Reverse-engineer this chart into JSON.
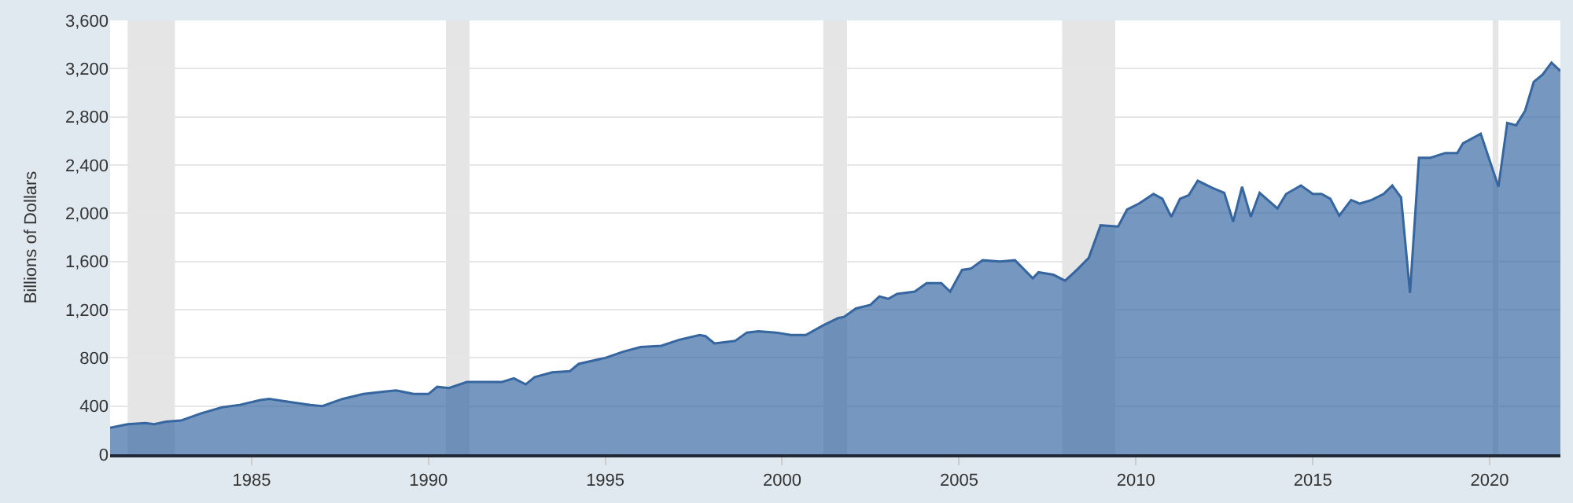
{
  "chart_data": {
    "type": "area",
    "ylabel": "Billions of Dollars",
    "x": [
      "1981-01",
      "1981-07",
      "1982-01",
      "1982-04",
      "1982-08",
      "1983-01",
      "1983-08",
      "1984-03",
      "1984-09",
      "1985-04",
      "1985-07",
      "1986-03",
      "1986-09",
      "1987-01",
      "1987-08",
      "1988-03",
      "1988-10",
      "1989-02",
      "1989-08",
      "1990-01",
      "1990-04",
      "1990-08",
      "1991-02",
      "1991-07",
      "1992-02",
      "1992-06",
      "1992-10",
      "1993-01",
      "1993-07",
      "1994-01",
      "1994-04",
      "1995-01",
      "1995-07",
      "1996-01",
      "1996-08",
      "1997-02",
      "1997-09",
      "1997-11",
      "1998-02",
      "1998-09",
      "1999-01",
      "1999-05",
      "1999-11",
      "2000-04",
      "2000-09",
      "2001-03",
      "2001-08",
      "2001-10",
      "2002-02",
      "2002-07",
      "2002-10",
      "2003-01",
      "2003-04",
      "2003-10",
      "2004-02",
      "2004-07",
      "2004-10",
      "2005-02",
      "2005-05",
      "2005-09",
      "2006-03",
      "2006-08",
      "2007-02",
      "2007-04",
      "2007-09",
      "2008-01",
      "2008-05",
      "2008-09",
      "2009-01",
      "2009-07",
      "2009-10",
      "2010-02",
      "2010-07",
      "2010-10",
      "2011-01",
      "2011-04",
      "2011-07",
      "2011-10",
      "2012-03",
      "2012-07",
      "2012-10",
      "2013-01",
      "2013-04",
      "2013-07",
      "2014-01",
      "2014-04",
      "2014-09",
      "2015-01",
      "2015-04",
      "2015-07",
      "2015-10",
      "2016-02",
      "2016-05",
      "2016-09",
      "2017-01",
      "2017-04",
      "2017-07",
      "2017-10",
      "2018-01",
      "2018-05",
      "2018-10",
      "2019-02",
      "2019-04",
      "2019-10",
      "2020-04",
      "2020-07",
      "2020-10",
      "2021-01",
      "2021-04",
      "2021-07",
      "2021-10",
      "2022-01"
    ],
    "series": [
      {
        "color": "#3566a0",
        "values": [
          220,
          250,
          260,
          250,
          270,
          280,
          340,
          390,
          410,
          450,
          460,
          430,
          410,
          400,
          460,
          500,
          520,
          530,
          500,
          500,
          560,
          550,
          600,
          600,
          600,
          630,
          580,
          640,
          680,
          690,
          750,
          800,
          850,
          890,
          900,
          950,
          990,
          980,
          920,
          940,
          1010,
          1020,
          1010,
          990,
          990,
          1070,
          1130,
          1140,
          1210,
          1240,
          1310,
          1290,
          1330,
          1350,
          1420,
          1420,
          1350,
          1530,
          1540,
          1610,
          1600,
          1610,
          1460,
          1510,
          1490,
          1440,
          1530,
          1630,
          1900,
          1890,
          2030,
          2080,
          2160,
          2120,
          1970,
          2120,
          2150,
          2270,
          2210,
          2170,
          1930,
          2220,
          1970,
          2170,
          2040,
          2160,
          2230,
          2160,
          2160,
          2120,
          1980,
          2110,
          2080,
          2110,
          2160,
          2230,
          2130,
          1340,
          2460,
          2460,
          2500,
          2500,
          2580,
          2660,
          2220,
          2750,
          2730,
          2850,
          3090,
          3150,
          3250,
          3180
        ]
      }
    ],
    "xlim": [
      "1981-01",
      "2022-01"
    ],
    "xticks": [
      "1985",
      "1990",
      "1995",
      "2000",
      "2005",
      "2010",
      "2015",
      "2020"
    ],
    "ylim": [
      0,
      3600
    ],
    "yticks": [
      0,
      400,
      800,
      {
        "value": 1200,
        "label": "1,200"
      },
      {
        "value": 1600,
        "label": "1,600"
      },
      {
        "value": 2000,
        "label": "2,000"
      },
      {
        "value": 2400,
        "label": "2,400"
      },
      {
        "value": 2800,
        "label": "2,800"
      },
      {
        "value": 3200,
        "label": "3,200"
      },
      {
        "value": 3600,
        "label": "3,600"
      }
    ],
    "bands": [
      {
        "axis": "x",
        "from": "1981-07",
        "to": "1982-11",
        "color": "#e5e5e5"
      },
      {
        "axis": "x",
        "from": "1990-07",
        "to": "1991-03",
        "color": "#e5e5e5"
      },
      {
        "axis": "x",
        "from": "2001-03",
        "to": "2001-11",
        "color": "#e5e5e5"
      },
      {
        "axis": "x",
        "from": "2007-12",
        "to": "2009-06",
        "color": "#e5e5e5"
      },
      {
        "axis": "x",
        "from": "2020-02",
        "to": "2020-04",
        "color": "#e5e5e5"
      }
    ],
    "grid": "y"
  }
}
